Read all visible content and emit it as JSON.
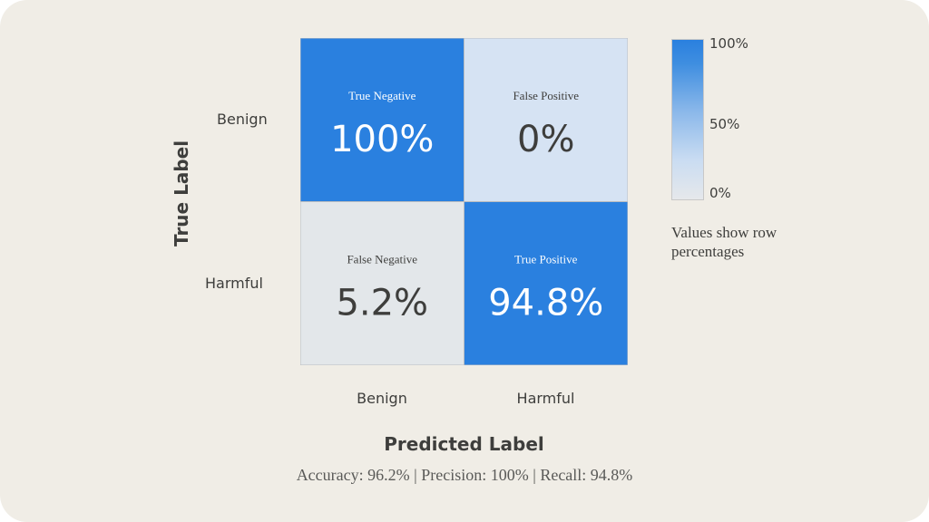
{
  "chart_data": {
    "type": "heatmap",
    "title": "",
    "xlabel": "Predicted Label",
    "ylabel": "True Label",
    "x_categories": [
      "Benign",
      "Harmful"
    ],
    "y_categories": [
      "Benign",
      "Harmful"
    ],
    "cells": [
      [
        {
          "label": "True Negative",
          "value": 100,
          "display": "100%"
        },
        {
          "label": "False Positive",
          "value": 0,
          "display": "0%"
        }
      ],
      [
        {
          "label": "False Negative",
          "value": 5.2,
          "display": "5.2%"
        },
        {
          "label": "True Positive",
          "value": 94.8,
          "display": "94.8%"
        }
      ]
    ],
    "colorbar": {
      "ticks": [
        "100%",
        "50%",
        "0%"
      ],
      "range": [
        0,
        100
      ],
      "note": "Values show row percentages"
    },
    "metrics": "Accuracy: 96.2% | Precision: 100% | Recall: 94.8%"
  },
  "colors": {
    "card_background": "#f0ede6",
    "high": "#2a80df",
    "light": "#d6e3f3",
    "lightest": "#e3e7ea",
    "text_dark": "#3e3e3c",
    "text_on_dark": "#ffffff"
  }
}
